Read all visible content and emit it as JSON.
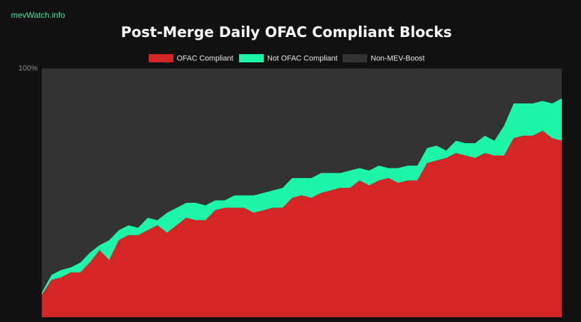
{
  "watermark": "mevWatch.info",
  "chart_data": {
    "type": "stacked-area",
    "title": "Post-Merge Daily OFAC Compliant Blocks",
    "ylim": [
      0,
      100
    ],
    "yticks": [
      {
        "value": 100,
        "label": "100%"
      }
    ],
    "series": [
      {
        "name": "OFAC Compliant",
        "color": "#d42626",
        "values": [
          9,
          15,
          16,
          18,
          18,
          22,
          27,
          23,
          31,
          33,
          33,
          35,
          37,
          34,
          37,
          40,
          39,
          39,
          43,
          44,
          44,
          44,
          42,
          43,
          44,
          44,
          48,
          49,
          48,
          50,
          51,
          52,
          52,
          55,
          53,
          55,
          56,
          54,
          55,
          55,
          62,
          63,
          64,
          66,
          65,
          64,
          66,
          65,
          65,
          72,
          73,
          73,
          75,
          72,
          71
        ]
      },
      {
        "name": "Not OFAC Compliant",
        "color": "#1ef5a8",
        "values": [
          1,
          2,
          3,
          2,
          4,
          4,
          2,
          8,
          4,
          4,
          3,
          5,
          2,
          8,
          7,
          6,
          7,
          6,
          4,
          3,
          5,
          5,
          7,
          7,
          7,
          8,
          8,
          7,
          8,
          8,
          7,
          6,
          7,
          5,
          6,
          6,
          4,
          6,
          6,
          6,
          6,
          6,
          3,
          5,
          5,
          6,
          7,
          6,
          12,
          14,
          13,
          13,
          12,
          14,
          17
        ]
      },
      {
        "name": "Non-MEV-Boost",
        "color": "#333333",
        "values": [
          90,
          83,
          81,
          80,
          78,
          74,
          71,
          69,
          65,
          63,
          64,
          60,
          61,
          58,
          56,
          54,
          54,
          55,
          53,
          53,
          51,
          51,
          51,
          50,
          49,
          48,
          44,
          44,
          44,
          42,
          42,
          42,
          41,
          40,
          41,
          39,
          40,
          40,
          39,
          39,
          32,
          31,
          33,
          29,
          30,
          30,
          27,
          29,
          23,
          14,
          14,
          14,
          13,
          14,
          12
        ]
      }
    ]
  }
}
